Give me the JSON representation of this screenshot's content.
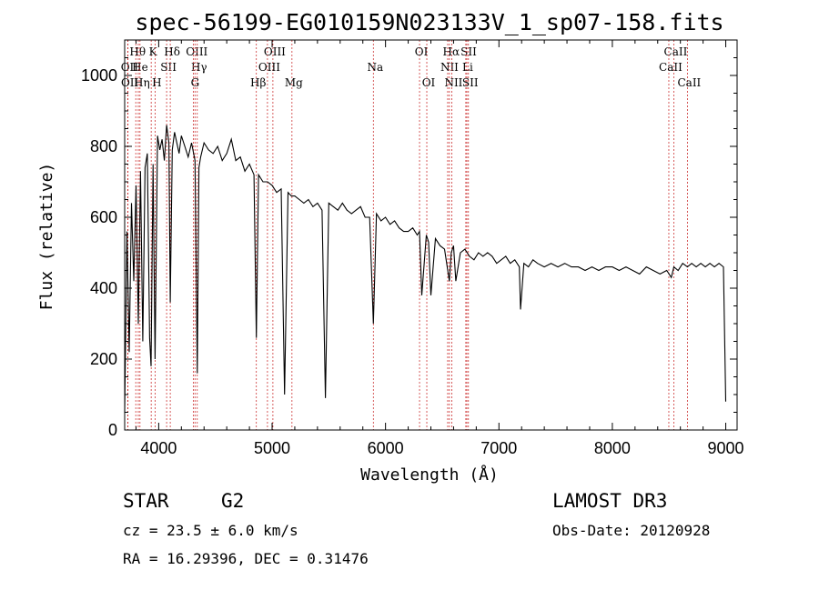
{
  "chart_data": {
    "type": "line",
    "title": "spec-56199-EG010159N023133V_1_sp07-158.fits",
    "xlabel": "Wavelength (Å)",
    "ylabel": "Flux (relative)",
    "xlim": [
      3700,
      9100
    ],
    "ylim": [
      0,
      1100
    ],
    "xticks": [
      4000,
      5000,
      6000,
      7000,
      8000,
      9000
    ],
    "yticks": [
      0,
      200,
      400,
      600,
      800,
      1000
    ],
    "series": [
      {
        "name": "flux",
        "x": [
          3700,
          3720,
          3740,
          3760,
          3780,
          3800,
          3820,
          3840,
          3860,
          3880,
          3900,
          3920,
          3933,
          3950,
          3968,
          3990,
          4010,
          4030,
          4050,
          4070,
          4090,
          4102,
          4120,
          4140,
          4160,
          4180,
          4200,
          4230,
          4260,
          4290,
          4320,
          4340,
          4355,
          4370,
          4400,
          4440,
          4480,
          4520,
          4560,
          4600,
          4640,
          4680,
          4720,
          4760,
          4800,
          4840,
          4861,
          4880,
          4920,
          4960,
          5000,
          5040,
          5080,
          5110,
          5140,
          5170,
          5200,
          5240,
          5280,
          5320,
          5360,
          5400,
          5440,
          5470,
          5500,
          5540,
          5580,
          5620,
          5660,
          5700,
          5740,
          5780,
          5820,
          5860,
          5893,
          5920,
          5960,
          6000,
          6040,
          6080,
          6120,
          6160,
          6200,
          6240,
          6280,
          6300,
          6320,
          6360,
          6380,
          6400,
          6440,
          6480,
          6520,
          6563,
          6580,
          6600,
          6620,
          6660,
          6700,
          6740,
          6780,
          6820,
          6860,
          6900,
          6940,
          6980,
          7020,
          7060,
          7100,
          7140,
          7180,
          7190,
          7220,
          7260,
          7300,
          7340,
          7400,
          7460,
          7520,
          7580,
          7640,
          7700,
          7760,
          7820,
          7880,
          7940,
          8000,
          8060,
          8120,
          8180,
          8240,
          8300,
          8360,
          8420,
          8480,
          8520,
          8542,
          8580,
          8620,
          8662,
          8700,
          8740,
          8780,
          8820,
          8860,
          8900,
          8940,
          8980,
          9000
        ],
        "values": [
          50,
          560,
          220,
          640,
          420,
          690,
          300,
          730,
          250,
          740,
          780,
          260,
          180,
          750,
          200,
          830,
          790,
          820,
          760,
          860,
          810,
          360,
          790,
          840,
          810,
          780,
          830,
          800,
          770,
          810,
          760,
          160,
          740,
          770,
          810,
          790,
          780,
          800,
          760,
          780,
          820,
          760,
          770,
          730,
          750,
          720,
          260,
          720,
          700,
          700,
          690,
          670,
          680,
          100,
          670,
          660,
          660,
          650,
          640,
          650,
          630,
          640,
          620,
          90,
          640,
          630,
          620,
          640,
          620,
          610,
          620,
          630,
          600,
          600,
          300,
          610,
          590,
          600,
          580,
          590,
          570,
          560,
          560,
          570,
          550,
          560,
          380,
          550,
          530,
          380,
          540,
          520,
          510,
          420,
          500,
          520,
          420,
          500,
          510,
          490,
          480,
          500,
          490,
          500,
          490,
          470,
          480,
          490,
          470,
          480,
          460,
          340,
          470,
          460,
          480,
          470,
          460,
          470,
          460,
          470,
          460,
          460,
          450,
          460,
          450,
          460,
          460,
          450,
          460,
          450,
          440,
          460,
          450,
          440,
          450,
          430,
          460,
          450,
          470,
          460,
          470,
          460,
          470,
          460,
          470,
          460,
          470,
          460,
          80
        ]
      }
    ],
    "line_markers": [
      {
        "label": "Hθ",
        "x": 3798,
        "row": 0
      },
      {
        "label": "OII",
        "x": 3727,
        "row": 1
      },
      {
        "label": "OII",
        "x": 3729,
        "row": 2
      },
      {
        "label": "He",
        "x": 3820,
        "row": 1
      },
      {
        "label": "Hη",
        "x": 3835,
        "row": 2
      },
      {
        "label": "K",
        "x": 3934,
        "row": 0
      },
      {
        "label": "H",
        "x": 3968,
        "row": 2
      },
      {
        "label": "SII",
        "x": 4070,
        "row": 1
      },
      {
        "label": "Hδ",
        "x": 4102,
        "row": 0
      },
      {
        "label": "OIII",
        "x": 4320,
        "row": 0
      },
      {
        "label": "Hγ",
        "x": 4340,
        "row": 1
      },
      {
        "label": "G",
        "x": 4305,
        "row": 2
      },
      {
        "label": "Hβ",
        "x": 4861,
        "row": 2
      },
      {
        "label": "OIII",
        "x": 5007,
        "row": 0
      },
      {
        "label": "OIII",
        "x": 4959,
        "row": 1
      },
      {
        "label": "Mg",
        "x": 5175,
        "row": 2
      },
      {
        "label": "Na",
        "x": 5893,
        "row": 1
      },
      {
        "label": "OI",
        "x": 6300,
        "row": 0
      },
      {
        "label": "OI",
        "x": 6364,
        "row": 2
      },
      {
        "label": "Hα",
        "x": 6563,
        "row": 0
      },
      {
        "label": "NII",
        "x": 6548,
        "row": 1
      },
      {
        "label": "NII",
        "x": 6584,
        "row": 2
      },
      {
        "label": "SII",
        "x": 6717,
        "row": 0
      },
      {
        "label": "Li",
        "x": 6708,
        "row": 1
      },
      {
        "label": "SII",
        "x": 6731,
        "row": 2
      },
      {
        "label": "CaII",
        "x": 8542,
        "row": 0
      },
      {
        "label": "CaII",
        "x": 8498,
        "row": 1
      },
      {
        "label": "CaII",
        "x": 8662,
        "row": 2
      }
    ]
  },
  "info": {
    "obj_class": "STAR",
    "subclass": "G2",
    "survey": "LAMOST DR3",
    "cz": "cz = 23.5 ± 6.0 km/s",
    "obs_date": "Obs-Date: 20120928",
    "coords": "RA =  16.29396, DEC =   0.31476"
  },
  "colors": {
    "spectrum": "#000000",
    "marker": "#cc3333",
    "axes": "#000000"
  }
}
